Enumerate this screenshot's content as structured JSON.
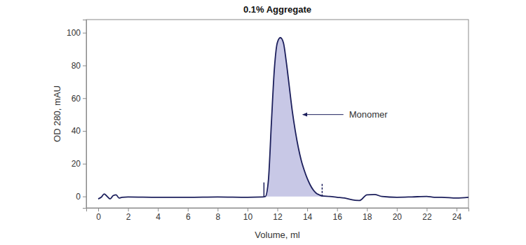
{
  "chart_data": {
    "type": "line",
    "title": "0.1% Aggregate",
    "x_label": "Volume, ml",
    "y_label": "OD 280, mAU",
    "xlim": [
      -0.8,
      24.8
    ],
    "ylim": [
      -7,
      108
    ],
    "xticks": [
      0,
      2,
      4,
      6,
      8,
      10,
      12,
      14,
      16,
      18,
      20,
      22,
      24
    ],
    "yticks": [
      0,
      20,
      40,
      60,
      80,
      100
    ],
    "color": "#1c1f5c",
    "x": [
      0,
      0.2,
      0.4,
      0.6,
      0.8,
      1.0,
      1.2,
      1.4,
      1.6,
      2,
      4,
      6,
      8,
      10,
      11,
      11.2,
      11.4,
      11.6,
      11.8,
      12.0,
      12.2,
      12.4,
      12.6,
      12.8,
      13.0,
      13.2,
      13.4,
      13.6,
      13.8,
      14.0,
      14.2,
      14.4,
      14.6,
      14.8,
      15.0,
      15.5,
      16,
      16.5,
      17,
      17.5,
      18,
      18.5,
      19,
      20,
      21,
      22,
      22.5,
      23,
      24,
      24.8
    ],
    "values": [
      -1.5,
      -0.5,
      1.5,
      0,
      -1.5,
      0.5,
      1,
      -1,
      -0.5,
      -0.3,
      -0.5,
      -0.5,
      -0.3,
      -0.5,
      -0.3,
      0,
      10,
      45,
      78,
      94,
      97,
      94,
      82,
      67,
      52,
      40,
      30,
      22,
      16,
      11,
      7,
      4,
      2,
      1,
      0.3,
      0,
      -0.5,
      -1,
      -2,
      -2.5,
      1,
      1.2,
      0,
      -0.5,
      -0.3,
      0,
      -0.5,
      -0.5,
      -1,
      -0.5
    ],
    "peak_range": [
      11.1,
      15.0
    ],
    "annotations": [
      {
        "text": "Monomer",
        "x": 16.8,
        "y": 50,
        "arrow_x": 13.7
      }
    ]
  }
}
